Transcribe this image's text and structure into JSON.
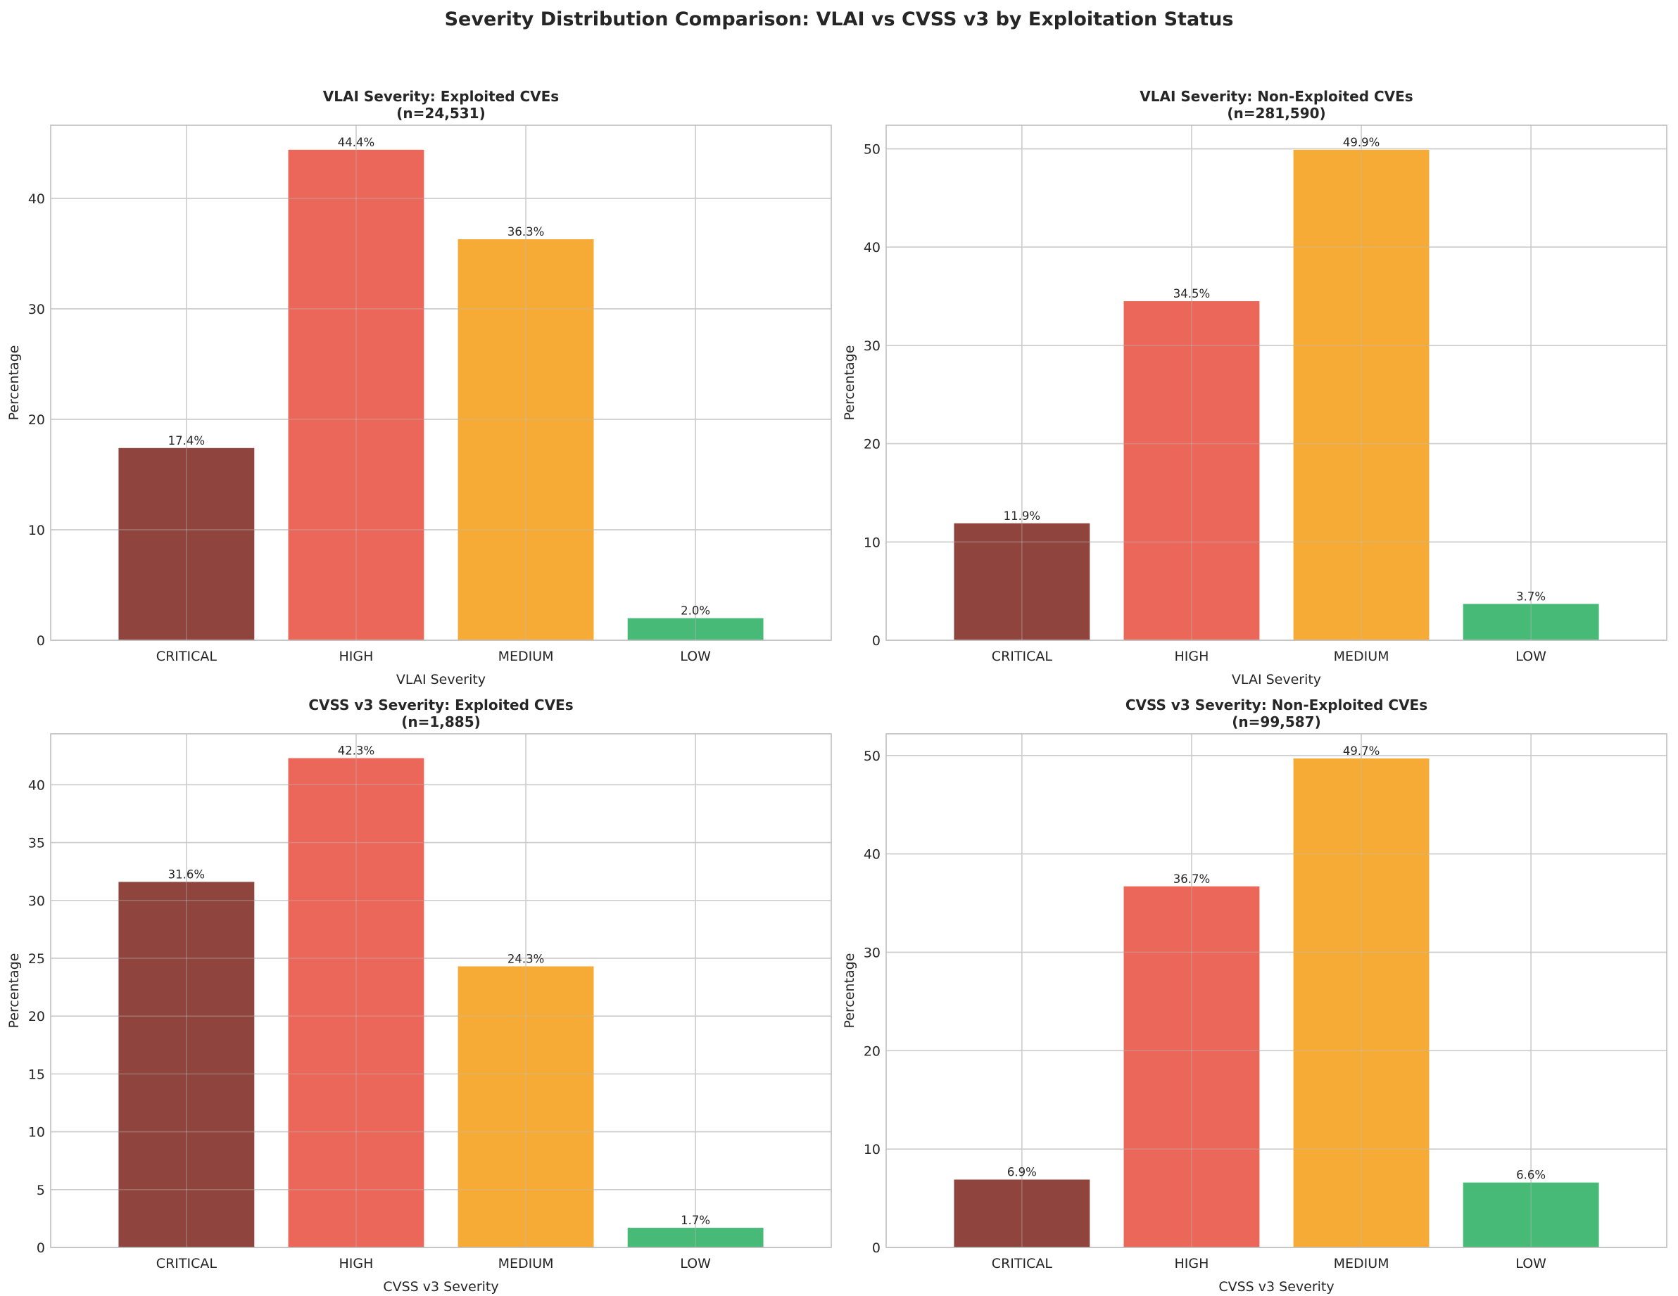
{
  "title": "Severity Distribution Comparison: VLAI vs CVSS v3 by Exploitation Status",
  "colors": {
    "CRITICAL": "#7b241c",
    "HIGH": "#e74c3c",
    "MEDIUM": "#f39c12",
    "LOW": "#27ae60"
  },
  "chart_data": [
    {
      "type": "bar",
      "title": "VLAI Severity: Exploited CVEs",
      "subtitle": "(n=24,531)",
      "categories": [
        "CRITICAL",
        "HIGH",
        "MEDIUM",
        "LOW"
      ],
      "values": [
        17.4,
        44.4,
        36.3,
        2.0
      ],
      "value_labels": [
        "17.4%",
        "44.4%",
        "36.3%",
        "2.0%"
      ],
      "xlabel": "VLAI Severity",
      "ylabel": "Percentage",
      "ylim": [
        0,
        46.62
      ],
      "yticks": [
        0,
        10,
        20,
        30,
        40
      ],
      "grid": true
    },
    {
      "type": "bar",
      "title": "VLAI Severity: Non-Exploited CVEs",
      "subtitle": "(n=281,590)",
      "categories": [
        "CRITICAL",
        "HIGH",
        "MEDIUM",
        "LOW"
      ],
      "values": [
        11.9,
        34.5,
        49.9,
        3.7
      ],
      "value_labels": [
        "11.9%",
        "34.5%",
        "49.9%",
        "3.7%"
      ],
      "xlabel": "VLAI Severity",
      "ylabel": "Percentage",
      "ylim": [
        0,
        52.4
      ],
      "yticks": [
        0,
        10,
        20,
        30,
        40,
        50
      ],
      "grid": true
    },
    {
      "type": "bar",
      "title": "CVSS v3 Severity: Exploited CVEs",
      "subtitle": "(n=1,885)",
      "categories": [
        "CRITICAL",
        "HIGH",
        "MEDIUM",
        "LOW"
      ],
      "values": [
        31.6,
        42.3,
        24.3,
        1.7
      ],
      "value_labels": [
        "31.6%",
        "42.3%",
        "24.3%",
        "1.7%"
      ],
      "xlabel": "CVSS v3 Severity",
      "ylabel": "Percentage",
      "ylim": [
        0,
        44.4
      ],
      "yticks": [
        0,
        5,
        10,
        15,
        20,
        25,
        30,
        35,
        40
      ],
      "grid": true
    },
    {
      "type": "bar",
      "title": "CVSS v3 Severity: Non-Exploited CVEs",
      "subtitle": "(n=99,587)",
      "categories": [
        "CRITICAL",
        "HIGH",
        "MEDIUM",
        "LOW"
      ],
      "values": [
        6.9,
        36.7,
        49.7,
        6.6
      ],
      "value_labels": [
        "6.9%",
        "36.7%",
        "49.7%",
        "6.6%"
      ],
      "xlabel": "CVSS v3 Severity",
      "ylabel": "Percentage",
      "ylim": [
        0,
        52.2
      ],
      "yticks": [
        0,
        10,
        20,
        30,
        40,
        50
      ],
      "grid": true
    }
  ]
}
